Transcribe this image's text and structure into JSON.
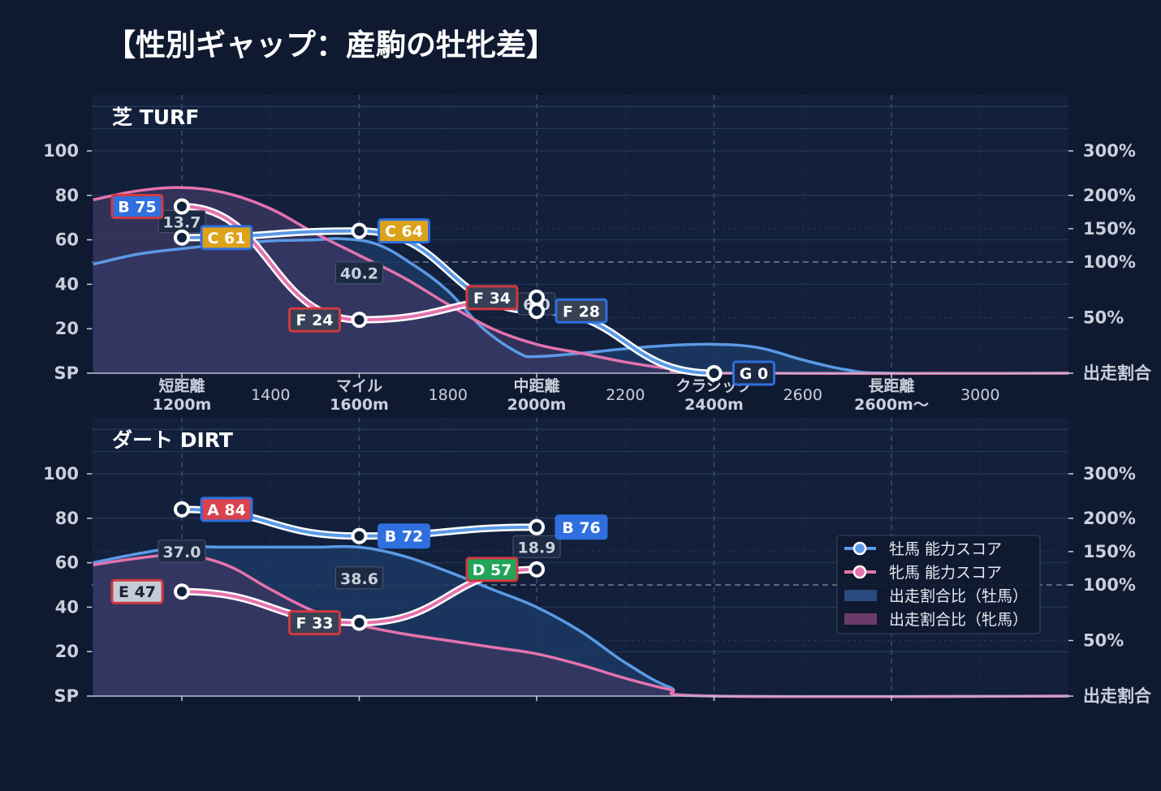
{
  "title": "【性別ギャップ：産駒の牡牝差】",
  "chart_data": {
    "type": "line",
    "x_categories": [
      "1200",
      "1400",
      "1600",
      "1800",
      "2000",
      "2200",
      "2400",
      "2600",
      "2800",
      "3000"
    ],
    "x_labels_main": [
      {
        "x": 1200,
        "line1": "短距離",
        "line2": "1200m"
      },
      {
        "x": 1600,
        "line1": "マイル",
        "line2": "1600m"
      },
      {
        "x": 2000,
        "line1": "中距離",
        "line2": "2000m"
      },
      {
        "x": 2400,
        "line1": "クラシック",
        "line2": "2400m"
      },
      {
        "x": 2800,
        "line1": "長距離",
        "line2": "2600m〜"
      }
    ],
    "x_labels_minor": [
      {
        "x": 1400,
        "text": "1400"
      },
      {
        "x": 1800,
        "text": "1800"
      },
      {
        "x": 2200,
        "text": "2200"
      },
      {
        "x": 2600,
        "text": "2600"
      },
      {
        "x": 3000,
        "text": "3000"
      }
    ],
    "xlim": [
      1000,
      3200
    ],
    "y_left_ticks": [
      {
        "v": 0,
        "text": "SP"
      },
      {
        "v": 20,
        "text": "20"
      },
      {
        "v": 40,
        "text": "40"
      },
      {
        "v": 60,
        "text": "60"
      },
      {
        "v": 80,
        "text": "80"
      },
      {
        "v": 100,
        "text": "100"
      }
    ],
    "ylim": [
      0,
      120
    ],
    "y_right_ticks": [
      {
        "pct": 300,
        "text": "300%"
      },
      {
        "pct": 200,
        "text": "200%"
      },
      {
        "pct": 150,
        "text": "150%"
      },
      {
        "pct": 100,
        "text": "100%"
      },
      {
        "pct": 50,
        "text": "50%"
      },
      {
        "pct": 0,
        "text": "出走割合"
      }
    ],
    "panels": [
      {
        "name": "芝 TURF",
        "male_score": [
          {
            "x": 1200,
            "y": 61,
            "label": "C 61",
            "grade": "C"
          },
          {
            "x": 1600,
            "y": 64,
            "label": "C 64",
            "grade": "C"
          },
          {
            "x": 2000,
            "y": 28,
            "label": "F 28",
            "grade": "F"
          },
          {
            "x": 2400,
            "y": 0,
            "label": "G 0",
            "grade": "G"
          }
        ],
        "female_score": [
          {
            "x": 1200,
            "y": 75,
            "label": "B 75",
            "grade": "B"
          },
          {
            "x": 1600,
            "y": 24,
            "label": "F 24",
            "grade": "F"
          },
          {
            "x": 2000,
            "y": 34,
            "label": "F 34",
            "grade": "F"
          }
        ],
        "gap_labels": [
          {
            "x": 1200,
            "y": 68,
            "text": "13.7"
          },
          {
            "x": 1600,
            "y": 45,
            "text": "40.2"
          },
          {
            "x": 2000,
            "y": 31,
            "text": "6.0"
          }
        ],
        "male_share": [
          [
            1000,
            49
          ],
          [
            1100,
            53.5
          ],
          [
            1200,
            56
          ],
          [
            1300,
            58
          ],
          [
            1400,
            59.5
          ],
          [
            1500,
            60
          ],
          [
            1560,
            60.5
          ],
          [
            1640,
            58
          ],
          [
            1720,
            49
          ],
          [
            1800,
            37
          ],
          [
            1880,
            20
          ],
          [
            1960,
            9
          ],
          [
            2000,
            7.5
          ],
          [
            2100,
            9
          ],
          [
            2200,
            11
          ],
          [
            2300,
            12.5
          ],
          [
            2400,
            13
          ],
          [
            2500,
            11.5
          ],
          [
            2600,
            6
          ],
          [
            2700,
            1.5
          ],
          [
            2800,
            0
          ],
          [
            3200,
            0
          ]
        ],
        "female_share": [
          [
            1000,
            78
          ],
          [
            1100,
            82
          ],
          [
            1200,
            83.5
          ],
          [
            1300,
            81
          ],
          [
            1400,
            74
          ],
          [
            1500,
            63
          ],
          [
            1600,
            53
          ],
          [
            1700,
            43
          ],
          [
            1800,
            31
          ],
          [
            1900,
            20
          ],
          [
            2000,
            13
          ],
          [
            2100,
            9
          ],
          [
            2200,
            5
          ],
          [
            2300,
            2
          ],
          [
            2400,
            0
          ],
          [
            3200,
            0
          ]
        ]
      },
      {
        "name": "ダート DIRT",
        "male_score": [
          {
            "x": 1200,
            "y": 84,
            "label": "A 84",
            "grade": "A"
          },
          {
            "x": 1600,
            "y": 72,
            "label": "B 72",
            "grade": "B"
          },
          {
            "x": 2000,
            "y": 76,
            "label": "B 76",
            "grade": "B"
          }
        ],
        "female_score": [
          {
            "x": 1200,
            "y": 47,
            "label": "E 47",
            "grade": "E"
          },
          {
            "x": 1600,
            "y": 33,
            "label": "F 33",
            "grade": "F"
          },
          {
            "x": 2000,
            "y": 57,
            "label": "D 57",
            "grade": "D"
          }
        ],
        "gap_labels": [
          {
            "x": 1200,
            "y": 65,
            "text": "37.0"
          },
          {
            "x": 1600,
            "y": 53,
            "text": "38.6"
          },
          {
            "x": 2000,
            "y": 67,
            "text": "18.9"
          }
        ],
        "male_share": [
          [
            1000,
            60
          ],
          [
            1100,
            64
          ],
          [
            1200,
            67
          ],
          [
            1300,
            67
          ],
          [
            1400,
            67
          ],
          [
            1500,
            67
          ],
          [
            1600,
            67
          ],
          [
            1700,
            63
          ],
          [
            1800,
            56
          ],
          [
            1900,
            48
          ],
          [
            2000,
            40
          ],
          [
            2100,
            29
          ],
          [
            2200,
            15
          ],
          [
            2300,
            4
          ],
          [
            2400,
            0
          ],
          [
            3200,
            0
          ]
        ],
        "female_share": [
          [
            1000,
            59
          ],
          [
            1100,
            62
          ],
          [
            1200,
            63.5
          ],
          [
            1300,
            59
          ],
          [
            1400,
            48
          ],
          [
            1500,
            38
          ],
          [
            1600,
            32
          ],
          [
            1700,
            28
          ],
          [
            1800,
            25
          ],
          [
            1900,
            22
          ],
          [
            2000,
            19
          ],
          [
            2100,
            14
          ],
          [
            2200,
            8
          ],
          [
            2300,
            3
          ],
          [
            2400,
            0
          ],
          [
            3200,
            0
          ]
        ]
      }
    ],
    "legend": {
      "placement": "right",
      "items": [
        {
          "text": "牡馬 能力スコア",
          "kind": "line",
          "color": "#5b9ae6"
        },
        {
          "text": "牝馬 能力スコア",
          "kind": "line",
          "color": "#e573ad"
        },
        {
          "text": "出走割合比（牡馬）",
          "kind": "patch",
          "color": "#2a4a7e"
        },
        {
          "text": "出走割合比（牝馬）",
          "kind": "patch",
          "color": "#6b3b69"
        }
      ]
    },
    "colors": {
      "background": "#0f1930",
      "panel": "#12203c",
      "male_line": "#5b9ae6",
      "female_line": "#e573ad",
      "male_fill": "#1c3760",
      "female_fill": "#3b3762",
      "grade_A": "#d8434d",
      "grade_B": "#2f6fde",
      "grade_C": "#dba21a",
      "grade_D": "#22a55a",
      "grade_E": "#c5cbd6",
      "grade_F": "#374256",
      "grade_G": "#1b2846"
    }
  }
}
